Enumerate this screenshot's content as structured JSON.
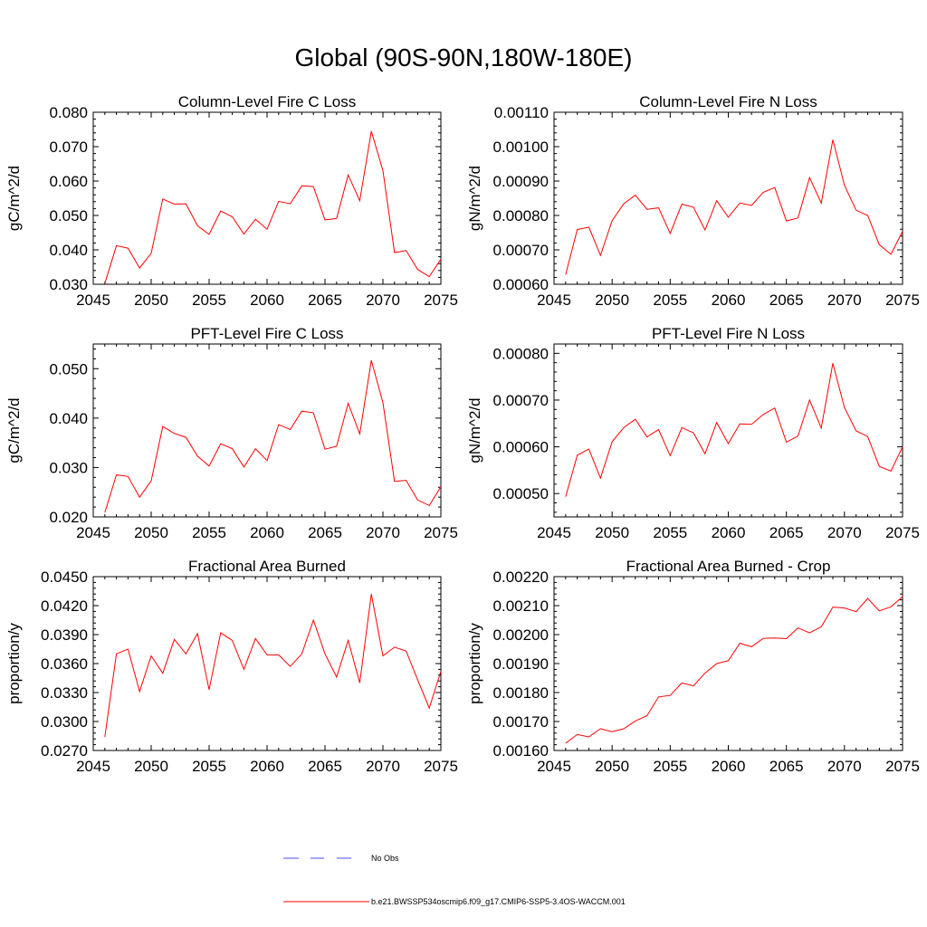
{
  "title": "Global (90S-90N,180W-180E)",
  "colors": {
    "series": "#ff0000",
    "noobs": "#4a4aff",
    "axis": "#000000"
  },
  "legend": {
    "noobs_label": "No Obs",
    "model_label": "b.e21.BWSSP534oscmip6.f09_g17.CMIP6-SSP5-3.4OS-WACCM.001"
  },
  "chart_data": [
    {
      "type": "line",
      "title": "Column-Level Fire C Loss",
      "xlabel": "",
      "ylabel": "gC/m^2/d",
      "xlim": [
        2045,
        2075
      ],
      "ylim": [
        0.03,
        0.08
      ],
      "xticks": [
        "2045",
        "2050",
        "2055",
        "2060",
        "2065",
        "2070",
        "2075"
      ],
      "yticks": [
        "0.030",
        "0.040",
        "0.050",
        "0.060",
        "0.070",
        "0.080"
      ],
      "x": [
        2046,
        2047,
        2048,
        2049,
        2050,
        2051,
        2052,
        2053,
        2054,
        2055,
        2056,
        2057,
        2058,
        2059,
        2060,
        2061,
        2062,
        2063,
        2064,
        2065,
        2066,
        2067,
        2068,
        2069,
        2070,
        2071,
        2072,
        2073,
        2074,
        2075
      ],
      "values": [
        0.0302,
        0.0412,
        0.0405,
        0.0347,
        0.039,
        0.0548,
        0.0533,
        0.0534,
        0.047,
        0.0445,
        0.0513,
        0.0496,
        0.0446,
        0.0489,
        0.046,
        0.0541,
        0.0534,
        0.0586,
        0.0584,
        0.0487,
        0.0491,
        0.0618,
        0.0543,
        0.0745,
        0.063,
        0.0392,
        0.0398,
        0.0343,
        0.0322,
        0.0373
      ]
    },
    {
      "type": "line",
      "title": "Column-Level Fire N Loss",
      "xlabel": "",
      "ylabel": "gN/m^2/d",
      "xlim": [
        2045,
        2075
      ],
      "ylim": [
        0.0006,
        0.0011
      ],
      "xticks": [
        "2045",
        "2050",
        "2055",
        "2060",
        "2065",
        "2070",
        "2075"
      ],
      "yticks": [
        "0.00060",
        "0.00070",
        "0.00080",
        "0.00090",
        "0.00100",
        "0.00110"
      ],
      "x": [
        2046,
        2047,
        2048,
        2049,
        2050,
        2051,
        2052,
        2053,
        2054,
        2055,
        2056,
        2057,
        2058,
        2059,
        2060,
        2061,
        2062,
        2063,
        2064,
        2065,
        2066,
        2067,
        2068,
        2069,
        2070,
        2071,
        2072,
        2073,
        2074,
        2075
      ],
      "values": [
        0.000628,
        0.000759,
        0.000766,
        0.000684,
        0.000785,
        0.000834,
        0.000859,
        0.000818,
        0.000822,
        0.000748,
        0.000833,
        0.000824,
        0.000758,
        0.000843,
        0.000795,
        0.000836,
        0.000829,
        0.000867,
        0.000881,
        0.000784,
        0.000793,
        0.00091,
        0.000836,
        0.00102,
        0.000888,
        0.000815,
        0.0008,
        0.000715,
        0.000687,
        0.000754
      ]
    },
    {
      "type": "line",
      "title": "PFT-Level Fire C Loss",
      "xlabel": "",
      "ylabel": "gC/m^2/d",
      "xlim": [
        2045,
        2075
      ],
      "ylim": [
        0.02,
        0.055
      ],
      "xticks": [
        "2045",
        "2050",
        "2055",
        "2060",
        "2065",
        "2070",
        "2075"
      ],
      "yticks": [
        "0.020",
        "0.030",
        "0.040",
        "0.050"
      ],
      "x": [
        2046,
        2047,
        2048,
        2049,
        2050,
        2051,
        2052,
        2053,
        2054,
        2055,
        2056,
        2057,
        2058,
        2059,
        2060,
        2061,
        2062,
        2063,
        2064,
        2065,
        2066,
        2067,
        2068,
        2069,
        2070,
        2071,
        2072,
        2073,
        2074,
        2075
      ],
      "values": [
        0.0209,
        0.0285,
        0.0282,
        0.024,
        0.0273,
        0.0383,
        0.0369,
        0.0361,
        0.0323,
        0.0303,
        0.0348,
        0.0338,
        0.0301,
        0.0338,
        0.0314,
        0.0387,
        0.0377,
        0.0414,
        0.0411,
        0.0337,
        0.0343,
        0.043,
        0.0368,
        0.0517,
        0.0431,
        0.0272,
        0.0274,
        0.0234,
        0.0223,
        0.0261
      ]
    },
    {
      "type": "line",
      "title": "PFT-Level Fire N Loss",
      "xlabel": "",
      "ylabel": "gN/m^2/d",
      "xlim": [
        2045,
        2075
      ],
      "ylim": [
        0.00045,
        0.00082
      ],
      "xticks": [
        "2045",
        "2050",
        "2055",
        "2060",
        "2065",
        "2070",
        "2075"
      ],
      "yticks": [
        "0.00050",
        "0.00060",
        "0.00070",
        "0.00080"
      ],
      "x": [
        2046,
        2047,
        2048,
        2049,
        2050,
        2051,
        2052,
        2053,
        2054,
        2055,
        2056,
        2057,
        2058,
        2059,
        2060,
        2061,
        2062,
        2063,
        2064,
        2065,
        2066,
        2067,
        2068,
        2069,
        2070,
        2071,
        2072,
        2073,
        2074,
        2075
      ],
      "values": [
        0.000493,
        0.000582,
        0.000595,
        0.000533,
        0.000611,
        0.000641,
        0.000659,
        0.000621,
        0.000637,
        0.000581,
        0.000641,
        0.00063,
        0.000585,
        0.000652,
        0.000607,
        0.000649,
        0.000648,
        0.000669,
        0.000683,
        0.00061,
        0.000623,
        0.0007,
        0.00064,
        0.000779,
        0.000684,
        0.000634,
        0.000622,
        0.000558,
        0.000548,
        0.0006
      ]
    },
    {
      "type": "line",
      "title": "Fractional Area Burned",
      "xlabel": "",
      "ylabel": "proportion/y",
      "xlim": [
        2045,
        2075
      ],
      "ylim": [
        0.027,
        0.045
      ],
      "xticks": [
        "2045",
        "2050",
        "2055",
        "2060",
        "2065",
        "2070",
        "2075"
      ],
      "yticks": [
        "0.0270",
        "0.0300",
        "0.0330",
        "0.0360",
        "0.0390",
        "0.0420",
        "0.0450"
      ],
      "x": [
        2046,
        2047,
        2048,
        2049,
        2050,
        2051,
        2052,
        2053,
        2054,
        2055,
        2056,
        2057,
        2058,
        2059,
        2060,
        2061,
        2062,
        2063,
        2064,
        2065,
        2066,
        2067,
        2068,
        2069,
        2070,
        2071,
        2072,
        2073,
        2074,
        2075
      ],
      "values": [
        0.0284,
        0.037,
        0.0375,
        0.0331,
        0.0368,
        0.035,
        0.0385,
        0.037,
        0.0391,
        0.0333,
        0.0392,
        0.0384,
        0.0354,
        0.0386,
        0.0369,
        0.0369,
        0.0357,
        0.037,
        0.0405,
        0.037,
        0.0346,
        0.0384,
        0.034,
        0.0432,
        0.0368,
        0.0377,
        0.0373,
        0.0343,
        0.0314,
        0.0352
      ]
    },
    {
      "type": "line",
      "title": "Fractional Area Burned - Crop",
      "xlabel": "",
      "ylabel": "proportion/y",
      "xlim": [
        2045,
        2075
      ],
      "ylim": [
        0.0016,
        0.0022
      ],
      "xticks": [
        "2045",
        "2050",
        "2055",
        "2060",
        "2065",
        "2070",
        "2075"
      ],
      "yticks": [
        "0.00160",
        "0.00170",
        "0.00180",
        "0.00190",
        "0.00200",
        "0.00210",
        "0.00220"
      ],
      "x": [
        2046,
        2047,
        2048,
        2049,
        2050,
        2051,
        2052,
        2053,
        2054,
        2055,
        2056,
        2057,
        2058,
        2059,
        2060,
        2061,
        2062,
        2063,
        2064,
        2065,
        2066,
        2067,
        2068,
        2069,
        2070,
        2071,
        2072,
        2073,
        2074,
        2075
      ],
      "values": [
        0.001625,
        0.001655,
        0.001647,
        0.001675,
        0.001665,
        0.001675,
        0.001702,
        0.00172,
        0.001785,
        0.00179,
        0.001833,
        0.001823,
        0.001867,
        0.0019,
        0.00191,
        0.00197,
        0.001958,
        0.001987,
        0.001988,
        0.001986,
        0.002023,
        0.002006,
        0.002027,
        0.002095,
        0.002092,
        0.002079,
        0.002125,
        0.002082,
        0.002096,
        0.002131
      ]
    }
  ]
}
